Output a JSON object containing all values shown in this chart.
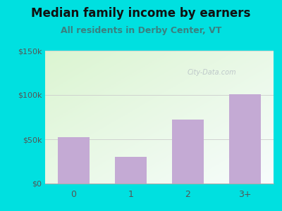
{
  "title": "Median family income by earners",
  "subtitle": "All residents in Derby Center, VT",
  "categories": [
    "0",
    "1",
    "2",
    "3+"
  ],
  "values": [
    52000,
    30000,
    72000,
    101000
  ],
  "bar_color": "#c4aad4",
  "ylim": [
    0,
    150000
  ],
  "yticks": [
    0,
    50000,
    100000,
    150000
  ],
  "ytick_labels": [
    "$0",
    "$50k",
    "$100k",
    "$150k"
  ],
  "title_fontsize": 12,
  "subtitle_fontsize": 9,
  "title_color": "#111111",
  "subtitle_color": "#3a8080",
  "outer_bg": "#00e0e0",
  "watermark": "City-Data.com",
  "tick_color": "#555555"
}
